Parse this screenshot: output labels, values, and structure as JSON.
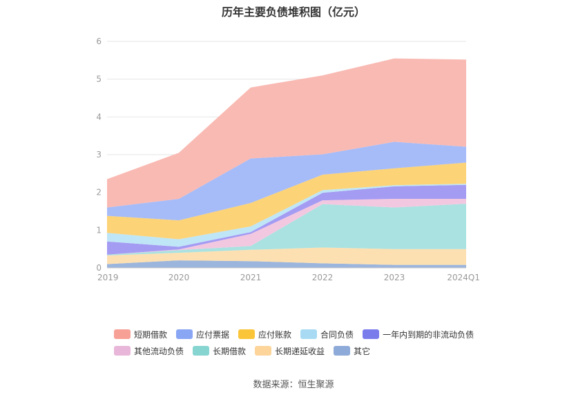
{
  "chart_data": {
    "type": "area",
    "title": "历年主要负债堆积图（亿元）",
    "categories": [
      "2019",
      "2020",
      "2021",
      "2022",
      "2023",
      "2024Q1"
    ],
    "ylim": [
      0,
      6
    ],
    "yticks": [
      "0",
      "1",
      "2",
      "3",
      "4",
      "5",
      "6"
    ],
    "grid": true,
    "stacked": true,
    "legend_position": "bottom",
    "series": [
      {
        "name": "其它",
        "color": "#9bb5dc",
        "values": [
          0.1,
          0.2,
          0.18,
          0.12,
          0.08,
          0.08
        ]
      },
      {
        "name": "长期递延收益",
        "color": "#fde0b2",
        "values": [
          0.23,
          0.2,
          0.3,
          0.42,
          0.42,
          0.42
        ]
      },
      {
        "name": "长期借款",
        "color": "#a9e2e1",
        "values": [
          0.02,
          0.07,
          0.1,
          1.15,
          1.1,
          1.2
        ]
      },
      {
        "name": "其他流动负债",
        "color": "#f2c8e0",
        "values": [
          0.0,
          0.02,
          0.32,
          0.1,
          0.23,
          0.13
        ]
      },
      {
        "name": "一年内到期的非流动负债",
        "color": "#a49bf3",
        "values": [
          0.35,
          0.07,
          0.05,
          0.2,
          0.33,
          0.37
        ]
      },
      {
        "name": "合同负债",
        "color": "#bfe6f6",
        "values": [
          0.23,
          0.2,
          0.15,
          0.07,
          0.03,
          0.03
        ]
      },
      {
        "name": "应付账款",
        "color": "#fcd377",
        "values": [
          0.45,
          0.5,
          0.62,
          0.41,
          0.45,
          0.56
        ]
      },
      {
        "name": "应付票据",
        "color": "#a6bcf8",
        "values": [
          0.22,
          0.57,
          1.18,
          0.54,
          0.7,
          0.42
        ]
      },
      {
        "name": "短期借款",
        "color": "#f9bab3",
        "values": [
          0.75,
          1.22,
          1.88,
          2.09,
          2.21,
          2.31
        ]
      }
    ],
    "legend_rows": [
      [
        {
          "name": "短期借款",
          "color": "#f7a096"
        },
        {
          "name": "应付票据",
          "color": "#89a6f5"
        },
        {
          "name": "应付账款",
          "color": "#fbc53a"
        },
        {
          "name": "合同负债",
          "color": "#a8dbf3"
        },
        {
          "name": "一年内到期的非流动负债",
          "color": "#7b7cec"
        }
      ],
      [
        {
          "name": "其他流动负债",
          "color": "#e8b6d8"
        },
        {
          "name": "长期借款",
          "color": "#86d5d1"
        },
        {
          "name": "长期递延收益",
          "color": "#fdd59b"
        },
        {
          "name": "其它",
          "color": "#8eaad8"
        }
      ]
    ]
  },
  "source": "数据来源：恒生聚源"
}
